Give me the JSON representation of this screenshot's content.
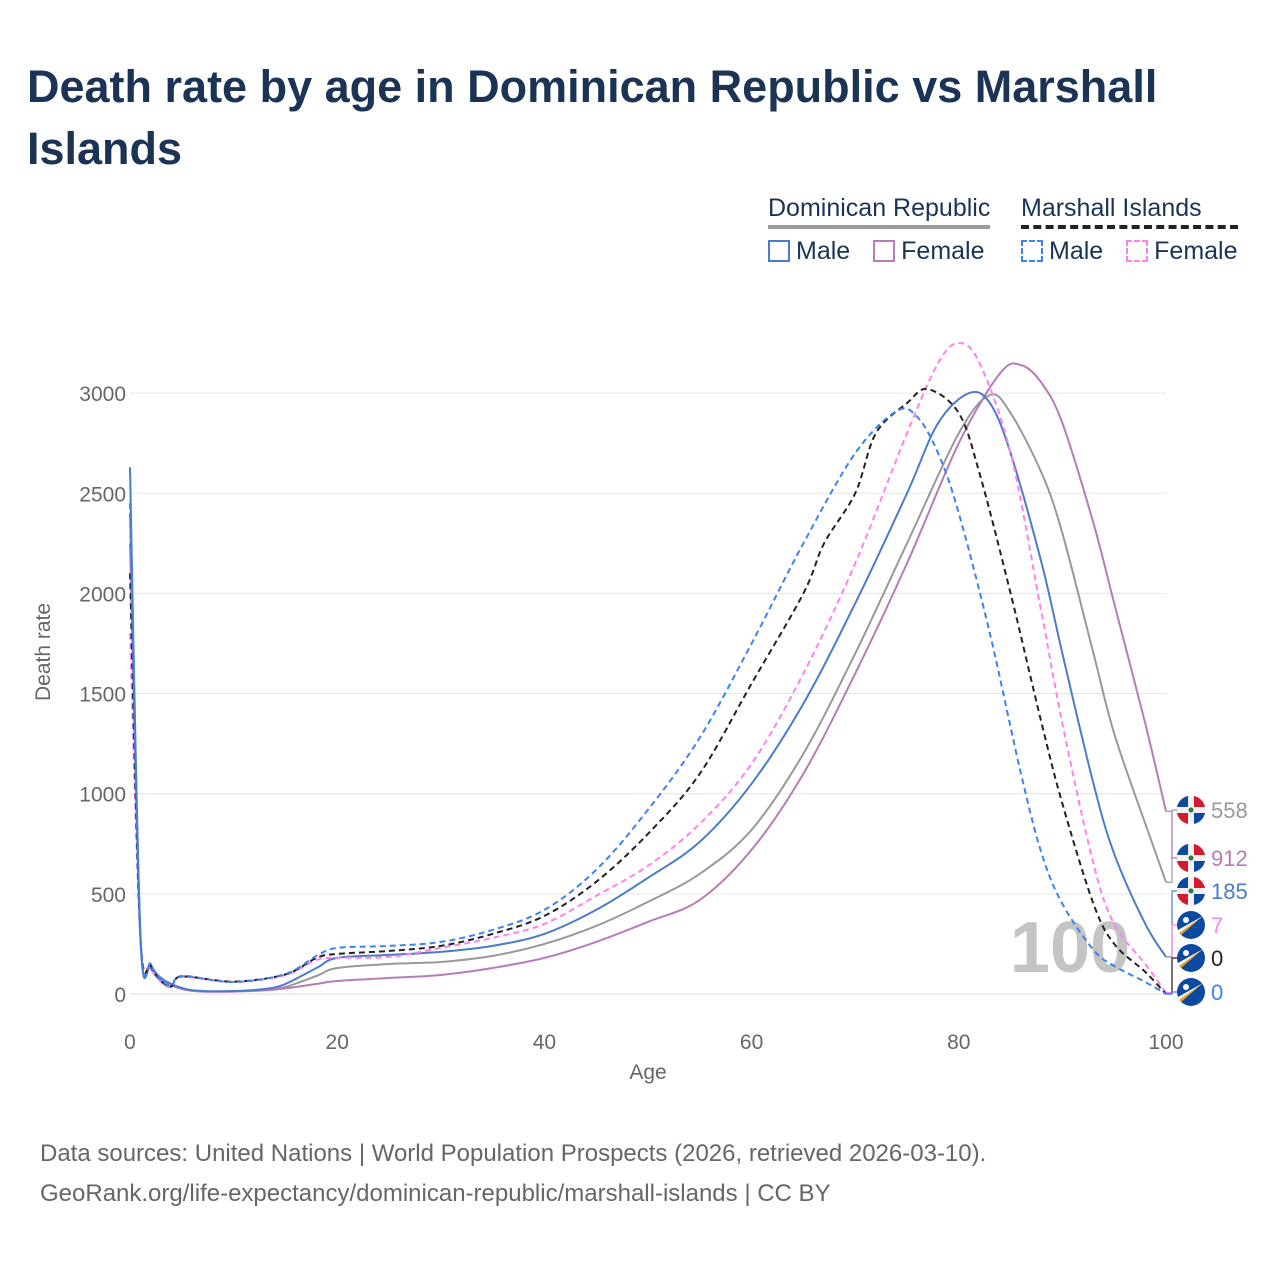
{
  "title": "Death rate by age in Dominican Republic vs Marshall Islands",
  "legend": {
    "groups": [
      {
        "name": "Dominican Republic",
        "items": [
          "Male",
          "Female"
        ]
      },
      {
        "name": "Marshall Islands",
        "items": [
          "Male",
          "Female"
        ]
      }
    ]
  },
  "watermark": "100",
  "sources": [
    "Data sources: United Nations | World Population Prospects (2026, retrieved 2026-03-10).",
    "GeoRank.org/life-expectancy/dominican-republic/marshall-islands | CC BY"
  ],
  "chart_data": {
    "type": "line",
    "title": "Death rate by age in Dominican Republic vs Marshall Islands",
    "xlabel": "Age",
    "ylabel": "Death rate",
    "xlim": [
      0,
      100
    ],
    "ylim": [
      0,
      3300
    ],
    "xticks": [
      0,
      20,
      40,
      60,
      80,
      100
    ],
    "yticks": [
      0,
      500,
      1000,
      1500,
      2000,
      2500,
      3000
    ],
    "grid": true,
    "series": [
      {
        "name": "Dominican Republic (total)",
        "color": "#999999",
        "dash": false,
        "end_label": "558",
        "flag": "dr",
        "x": [
          0,
          1,
          2,
          3,
          5,
          7,
          10,
          13,
          15,
          18,
          20,
          25,
          30,
          35,
          40,
          45,
          50,
          55,
          60,
          65,
          70,
          75,
          80,
          83,
          85,
          88,
          90,
          93,
          95,
          98,
          100
        ],
        "y": [
          2400,
          290,
          140,
          75,
          28,
          14,
          14,
          20,
          35,
          90,
          130,
          150,
          160,
          190,
          250,
          340,
          460,
          600,
          820,
          1200,
          1700,
          2250,
          2800,
          2990,
          2900,
          2600,
          2300,
          1700,
          1300,
          850,
          558
        ]
      },
      {
        "name": "Dominican Republic Female",
        "color": "#b77cb8",
        "dash": false,
        "end_label": "912",
        "flag": "dr",
        "x": [
          0,
          1,
          2,
          3,
          5,
          7,
          10,
          13,
          15,
          18,
          20,
          25,
          30,
          35,
          40,
          45,
          50,
          55,
          60,
          65,
          70,
          75,
          80,
          84,
          86,
          88,
          90,
          93,
          95,
          98,
          100
        ],
        "y": [
          2250,
          280,
          130,
          70,
          25,
          12,
          12,
          18,
          28,
          50,
          65,
          80,
          95,
          130,
          180,
          260,
          360,
          470,
          720,
          1100,
          1600,
          2150,
          2750,
          3100,
          3140,
          3050,
          2850,
          2350,
          1950,
          1350,
          912
        ]
      },
      {
        "name": "Dominican Republic Male",
        "color": "#4a7cc9",
        "dash": false,
        "end_label": "185",
        "flag": "dr",
        "x": [
          0,
          1,
          2,
          3,
          5,
          7,
          10,
          13,
          15,
          18,
          20,
          25,
          30,
          35,
          40,
          45,
          50,
          55,
          60,
          65,
          70,
          75,
          78,
          81,
          83,
          85,
          88,
          90,
          93,
          95,
          98,
          100
        ],
        "y": [
          2630,
          300,
          150,
          80,
          30,
          15,
          15,
          25,
          50,
          130,
          180,
          195,
          210,
          240,
          300,
          420,
          580,
          760,
          1050,
          1450,
          1950,
          2500,
          2850,
          3000,
          2950,
          2700,
          2150,
          1700,
          1050,
          700,
          350,
          185
        ]
      },
      {
        "name": "Marshall Islands Female",
        "color": "#ff80f0",
        "dash": true,
        "end_label": "7",
        "flag": "mi",
        "x": [
          0,
          1,
          2,
          3,
          4,
          5,
          10,
          15,
          18,
          20,
          25,
          30,
          35,
          40,
          45,
          50,
          55,
          60,
          65,
          70,
          75,
          78,
          80,
          82,
          85,
          88,
          90,
          93,
          95,
          98,
          100
        ],
        "y": [
          1800,
          280,
          130,
          60,
          35,
          85,
          60,
          95,
          170,
          180,
          185,
          230,
          280,
          350,
          490,
          640,
          850,
          1150,
          1600,
          2150,
          2800,
          3150,
          3250,
          3150,
          2700,
          1900,
          1350,
          650,
          350,
          150,
          7
        ]
      },
      {
        "name": "Marshall Islands (total)",
        "color": "#222222",
        "dash": true,
        "end_label": "0",
        "flag": "mi",
        "x": [
          0,
          1,
          2,
          3,
          4,
          5,
          10,
          15,
          18,
          20,
          25,
          30,
          35,
          40,
          45,
          50,
          55,
          60,
          65,
          67,
          70,
          72,
          75,
          77,
          80,
          82,
          85,
          88,
          90,
          93,
          95,
          98,
          100
        ],
        "y": [
          2100,
          290,
          140,
          65,
          38,
          88,
          62,
          98,
          180,
          200,
          215,
          240,
          300,
          390,
          560,
          800,
          1100,
          1550,
          2000,
          2250,
          2500,
          2800,
          2950,
          3020,
          2900,
          2600,
          2000,
          1350,
          950,
          450,
          250,
          110,
          0
        ]
      },
      {
        "name": "Marshall Islands Male",
        "color": "#3b82f6",
        "dash": true,
        "end_label": "0",
        "flag": "mi",
        "x": [
          0,
          1,
          2,
          3,
          4,
          5,
          10,
          15,
          18,
          20,
          25,
          30,
          35,
          40,
          45,
          50,
          55,
          60,
          65,
          70,
          74,
          76,
          78,
          80,
          83,
          86,
          88,
          90,
          93,
          95,
          98,
          100
        ],
        "y": [
          2450,
          300,
          145,
          70,
          40,
          90,
          60,
          100,
          190,
          230,
          240,
          260,
          320,
          420,
          620,
          920,
          1280,
          1750,
          2250,
          2700,
          2910,
          2880,
          2700,
          2400,
          1800,
          1100,
          700,
          450,
          220,
          140,
          60,
          0
        ]
      }
    ]
  }
}
